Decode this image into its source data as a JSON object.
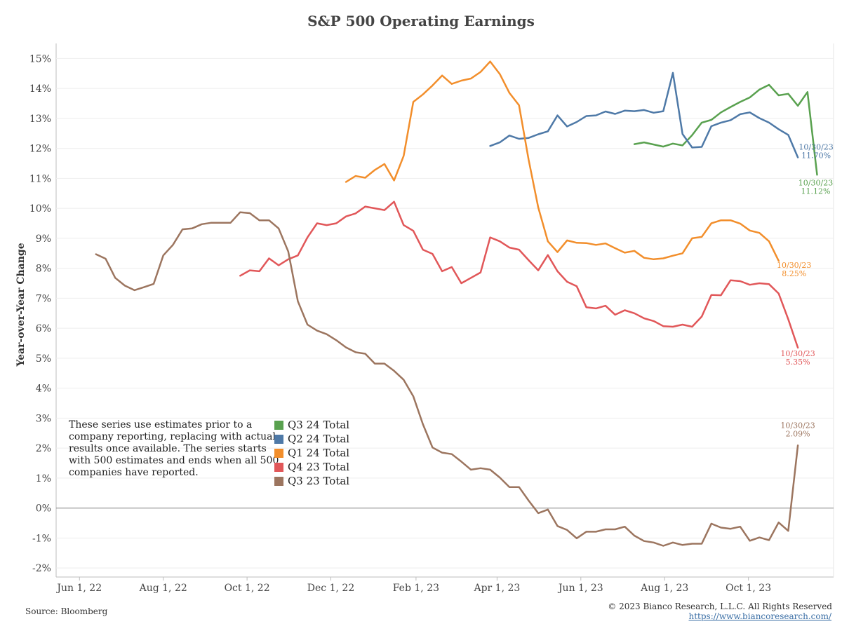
{
  "title": "S&P 500 Operating Earnings",
  "note": "These series use estimates prior to a company reporting, replacing with actual results once available. The series starts with 500 estimates and ends when all 500 companies have reported.",
  "source": "Source: Bloomberg",
  "copyright": "© 2023 Bianco Research, L.L.C. All Rights Reserved",
  "link": "https://www.biancoresearch.com/",
  "chart_data": {
    "type": "line",
    "title": "S&P 500 Operating Earnings",
    "xlabel": "",
    "ylabel": "Year-over-Year Change",
    "xlim": [
      "2022-05-15",
      "2023-12-02"
    ],
    "ylim": [
      -2.3,
      15.5
    ],
    "x_ticks": [
      {
        "date": "2022-06-01",
        "label": "Jun 1, 22"
      },
      {
        "date": "2022-08-01",
        "label": "Aug 1, 22"
      },
      {
        "date": "2022-10-01",
        "label": "Oct 1, 22"
      },
      {
        "date": "2022-12-01",
        "label": "Dec 1, 22"
      },
      {
        "date": "2023-02-01",
        "label": "Feb 1, 23"
      },
      {
        "date": "2023-04-01",
        "label": "Apr 1, 23"
      },
      {
        "date": "2023-06-01",
        "label": "Jun 1, 23"
      },
      {
        "date": "2023-08-01",
        "label": "Aug 1, 23"
      },
      {
        "date": "2023-10-01",
        "label": "Oct 1, 23"
      }
    ],
    "y_ticks": [
      {
        "value": 15,
        "label": "15%"
      },
      {
        "value": 14,
        "label": "14%"
      },
      {
        "value": 13,
        "label": "13%"
      },
      {
        "value": 12,
        "label": "12%"
      },
      {
        "value": 11,
        "label": "11%"
      },
      {
        "value": 10,
        "label": "10%"
      },
      {
        "value": 9,
        "label": "9%"
      },
      {
        "value": 8,
        "label": "8%"
      },
      {
        "value": 7,
        "label": "7%"
      },
      {
        "value": 6,
        "label": "6%"
      },
      {
        "value": 5,
        "label": "5%"
      },
      {
        "value": 4,
        "label": "4%"
      },
      {
        "value": 3,
        "label": "3%"
      },
      {
        "value": 2,
        "label": "2%"
      },
      {
        "value": 1,
        "label": "1%"
      },
      {
        "value": 0,
        "label": "0%"
      },
      {
        "value": -1,
        "label": "-1%"
      },
      {
        "value": -2,
        "label": "-2%"
      }
    ],
    "grid": true,
    "legend": "bottom-left",
    "series": [
      {
        "name": "Q3 24 Total",
        "color": "#59a14f",
        "end_label": [
          "10/30/23",
          "11.12%"
        ],
        "points": [
          [
            "2023-07-10",
            12.14
          ],
          [
            "2023-07-17",
            12.2
          ],
          [
            "2023-07-24",
            12.13
          ],
          [
            "2023-07-31",
            12.06
          ],
          [
            "2023-08-07",
            12.16
          ],
          [
            "2023-08-14",
            12.1
          ],
          [
            "2023-08-21",
            12.44
          ],
          [
            "2023-08-28",
            12.86
          ],
          [
            "2023-09-04",
            12.95
          ],
          [
            "2023-09-11",
            13.2
          ],
          [
            "2023-09-18",
            13.38
          ],
          [
            "2023-09-25",
            13.55
          ],
          [
            "2023-10-02",
            13.7
          ],
          [
            "2023-10-09",
            13.96
          ],
          [
            "2023-10-16",
            14.12
          ],
          [
            "2023-10-23",
            13.77
          ],
          [
            "2023-10-30",
            13.82
          ],
          [
            "2023-11-06",
            13.42
          ],
          [
            "2023-11-13",
            13.88
          ],
          [
            "2023-11-20",
            11.12
          ]
        ]
      },
      {
        "name": "Q2 24 Total",
        "color": "#4e79a7",
        "end_label": [
          "10/30/23",
          "11.70%"
        ],
        "points": [
          [
            "2023-03-27",
            12.08
          ],
          [
            "2023-04-03",
            12.2
          ],
          [
            "2023-04-10",
            12.43
          ],
          [
            "2023-04-17",
            12.32
          ],
          [
            "2023-04-24",
            12.35
          ],
          [
            "2023-05-01",
            12.47
          ],
          [
            "2023-05-08",
            12.57
          ],
          [
            "2023-05-15",
            13.1
          ],
          [
            "2023-05-22",
            12.73
          ],
          [
            "2023-05-29",
            12.88
          ],
          [
            "2023-06-05",
            13.08
          ],
          [
            "2023-06-12",
            13.1
          ],
          [
            "2023-06-19",
            13.23
          ],
          [
            "2023-06-26",
            13.15
          ],
          [
            "2023-07-03",
            13.26
          ],
          [
            "2023-07-10",
            13.24
          ],
          [
            "2023-07-17",
            13.28
          ],
          [
            "2023-07-24",
            13.19
          ],
          [
            "2023-07-31",
            13.24
          ],
          [
            "2023-08-07",
            14.52
          ],
          [
            "2023-08-14",
            12.48
          ],
          [
            "2023-08-21",
            12.03
          ],
          [
            "2023-08-28",
            12.05
          ],
          [
            "2023-09-04",
            12.74
          ],
          [
            "2023-09-11",
            12.86
          ],
          [
            "2023-09-18",
            12.94
          ],
          [
            "2023-09-25",
            13.14
          ],
          [
            "2023-10-02",
            13.2
          ],
          [
            "2023-10-09",
            13.01
          ],
          [
            "2023-10-16",
            12.86
          ],
          [
            "2023-10-23",
            12.64
          ],
          [
            "2023-10-30",
            12.45
          ],
          [
            "2023-11-06",
            11.7
          ]
        ]
      },
      {
        "name": "Q1 24 Total",
        "color": "#f28e2b",
        "end_label": [
          "10/30/23",
          "8.25%"
        ],
        "points": [
          [
            "2022-12-12",
            10.88
          ],
          [
            "2022-12-19",
            11.08
          ],
          [
            "2022-12-26",
            11.02
          ],
          [
            "2023-01-02",
            11.28
          ],
          [
            "2023-01-09",
            11.48
          ],
          [
            "2023-01-16",
            10.93
          ],
          [
            "2023-01-23",
            11.75
          ],
          [
            "2023-01-30",
            13.55
          ],
          [
            "2023-02-06",
            13.8
          ],
          [
            "2023-02-13",
            14.1
          ],
          [
            "2023-02-20",
            14.43
          ],
          [
            "2023-02-27",
            14.15
          ],
          [
            "2023-03-06",
            14.26
          ],
          [
            "2023-03-13",
            14.33
          ],
          [
            "2023-03-20",
            14.55
          ],
          [
            "2023-03-27",
            14.9
          ],
          [
            "2023-04-03",
            14.48
          ],
          [
            "2023-04-10",
            13.85
          ],
          [
            "2023-04-17",
            13.44
          ],
          [
            "2023-04-24",
            11.62
          ],
          [
            "2023-05-01",
            10.03
          ],
          [
            "2023-05-08",
            8.9
          ],
          [
            "2023-05-15",
            8.54
          ],
          [
            "2023-05-22",
            8.93
          ],
          [
            "2023-05-29",
            8.85
          ],
          [
            "2023-06-05",
            8.84
          ],
          [
            "2023-06-12",
            8.78
          ],
          [
            "2023-06-19",
            8.83
          ],
          [
            "2023-06-26",
            8.67
          ],
          [
            "2023-07-03",
            8.52
          ],
          [
            "2023-07-10",
            8.58
          ],
          [
            "2023-07-17",
            8.35
          ],
          [
            "2023-07-24",
            8.3
          ],
          [
            "2023-07-31",
            8.33
          ],
          [
            "2023-08-07",
            8.42
          ],
          [
            "2023-08-14",
            8.5
          ],
          [
            "2023-08-21",
            9.0
          ],
          [
            "2023-08-28",
            9.05
          ],
          [
            "2023-09-04",
            9.5
          ],
          [
            "2023-09-11",
            9.6
          ],
          [
            "2023-09-18",
            9.6
          ],
          [
            "2023-09-25",
            9.49
          ],
          [
            "2023-10-02",
            9.26
          ],
          [
            "2023-10-09",
            9.18
          ],
          [
            "2023-10-16",
            8.9
          ],
          [
            "2023-10-23",
            8.25
          ]
        ]
      },
      {
        "name": "Q4 23 Total",
        "color": "#e15759",
        "end_label": [
          "10/30/23",
          "5.35%"
        ],
        "points": [
          [
            "2022-09-26",
            7.75
          ],
          [
            "2022-10-03",
            7.93
          ],
          [
            "2022-10-10",
            7.9
          ],
          [
            "2022-10-17",
            8.33
          ],
          [
            "2022-10-24",
            8.1
          ],
          [
            "2022-10-31",
            8.3
          ],
          [
            "2022-11-07",
            8.43
          ],
          [
            "2022-11-14",
            9.03
          ],
          [
            "2022-11-21",
            9.5
          ],
          [
            "2022-11-28",
            9.44
          ],
          [
            "2022-12-05",
            9.5
          ],
          [
            "2022-12-12",
            9.73
          ],
          [
            "2022-12-19",
            9.83
          ],
          [
            "2022-12-26",
            10.06
          ],
          [
            "2023-01-02",
            10.0
          ],
          [
            "2023-01-09",
            9.94
          ],
          [
            "2023-01-16",
            10.22
          ],
          [
            "2023-01-23",
            9.44
          ],
          [
            "2023-01-30",
            9.25
          ],
          [
            "2023-02-06",
            8.62
          ],
          [
            "2023-02-13",
            8.48
          ],
          [
            "2023-02-20",
            7.9
          ],
          [
            "2023-02-27",
            8.04
          ],
          [
            "2023-03-06",
            7.5
          ],
          [
            "2023-03-13",
            7.68
          ],
          [
            "2023-03-20",
            7.86
          ],
          [
            "2023-03-27",
            9.03
          ],
          [
            "2023-04-03",
            8.9
          ],
          [
            "2023-04-10",
            8.69
          ],
          [
            "2023-04-17",
            8.62
          ],
          [
            "2023-04-24",
            8.27
          ],
          [
            "2023-05-01",
            7.93
          ],
          [
            "2023-05-08",
            8.44
          ],
          [
            "2023-05-15",
            7.9
          ],
          [
            "2023-05-22",
            7.55
          ],
          [
            "2023-05-29",
            7.4
          ],
          [
            "2023-06-05",
            6.7
          ],
          [
            "2023-06-12",
            6.66
          ],
          [
            "2023-06-19",
            6.75
          ],
          [
            "2023-06-26",
            6.45
          ],
          [
            "2023-07-03",
            6.6
          ],
          [
            "2023-07-10",
            6.5
          ],
          [
            "2023-07-17",
            6.33
          ],
          [
            "2023-07-24",
            6.24
          ],
          [
            "2023-07-31",
            6.07
          ],
          [
            "2023-08-07",
            6.05
          ],
          [
            "2023-08-14",
            6.12
          ],
          [
            "2023-08-21",
            6.05
          ],
          [
            "2023-08-28",
            6.39
          ],
          [
            "2023-09-04",
            7.11
          ],
          [
            "2023-09-11",
            7.1
          ],
          [
            "2023-09-18",
            7.6
          ],
          [
            "2023-09-25",
            7.57
          ],
          [
            "2023-10-02",
            7.45
          ],
          [
            "2023-10-09",
            7.5
          ],
          [
            "2023-10-16",
            7.47
          ],
          [
            "2023-10-23",
            7.16
          ],
          [
            "2023-10-30",
            6.3
          ],
          [
            "2023-11-06",
            5.35
          ]
        ]
      },
      {
        "name": "Q3 23 Total",
        "color": "#9c755f",
        "end_label": [
          "10/30/23",
          "2.09%"
        ],
        "points": [
          [
            "2022-06-13",
            8.47
          ],
          [
            "2022-06-20",
            8.32
          ],
          [
            "2022-06-27",
            7.68
          ],
          [
            "2022-07-04",
            7.42
          ],
          [
            "2022-07-11",
            7.27
          ],
          [
            "2022-07-18",
            7.37
          ],
          [
            "2022-07-25",
            7.48
          ],
          [
            "2022-08-01",
            8.43
          ],
          [
            "2022-08-08",
            8.78
          ],
          [
            "2022-08-15",
            9.3
          ],
          [
            "2022-08-22",
            9.33
          ],
          [
            "2022-08-29",
            9.47
          ],
          [
            "2022-09-05",
            9.52
          ],
          [
            "2022-09-12",
            9.52
          ],
          [
            "2022-09-19",
            9.52
          ],
          [
            "2022-09-26",
            9.87
          ],
          [
            "2022-10-03",
            9.84
          ],
          [
            "2022-10-10",
            9.6
          ],
          [
            "2022-10-17",
            9.6
          ],
          [
            "2022-10-24",
            9.33
          ],
          [
            "2022-10-31",
            8.56
          ],
          [
            "2022-11-07",
            6.9
          ],
          [
            "2022-11-14",
            6.12
          ],
          [
            "2022-11-21",
            5.92
          ],
          [
            "2022-11-28",
            5.8
          ],
          [
            "2022-12-05",
            5.6
          ],
          [
            "2022-12-12",
            5.36
          ],
          [
            "2022-12-19",
            5.2
          ],
          [
            "2022-12-26",
            5.15
          ],
          [
            "2023-01-02",
            4.82
          ],
          [
            "2023-01-09",
            4.82
          ],
          [
            "2023-01-16",
            4.58
          ],
          [
            "2023-01-23",
            4.28
          ],
          [
            "2023-01-30",
            3.73
          ],
          [
            "2023-02-06",
            2.8
          ],
          [
            "2023-02-13",
            2.02
          ],
          [
            "2023-02-20",
            1.85
          ],
          [
            "2023-02-27",
            1.8
          ],
          [
            "2023-03-06",
            1.55
          ],
          [
            "2023-03-13",
            1.28
          ],
          [
            "2023-03-20",
            1.33
          ],
          [
            "2023-03-27",
            1.28
          ],
          [
            "2023-04-03",
            1.02
          ],
          [
            "2023-04-10",
            0.7
          ],
          [
            "2023-04-17",
            0.7
          ],
          [
            "2023-04-24",
            0.25
          ],
          [
            "2023-05-01",
            -0.17
          ],
          [
            "2023-05-08",
            -0.05
          ],
          [
            "2023-05-15",
            -0.6
          ],
          [
            "2023-05-22",
            -0.73
          ],
          [
            "2023-05-29",
            -1.01
          ],
          [
            "2023-06-05",
            -0.79
          ],
          [
            "2023-06-12",
            -0.79
          ],
          [
            "2023-06-19",
            -0.71
          ],
          [
            "2023-06-26",
            -0.71
          ],
          [
            "2023-07-03",
            -0.62
          ],
          [
            "2023-07-10",
            -0.92
          ],
          [
            "2023-07-17",
            -1.1
          ],
          [
            "2023-07-24",
            -1.15
          ],
          [
            "2023-07-31",
            -1.26
          ],
          [
            "2023-08-07",
            -1.15
          ],
          [
            "2023-08-14",
            -1.23
          ],
          [
            "2023-08-21",
            -1.19
          ],
          [
            "2023-08-28",
            -1.19
          ],
          [
            "2023-09-04",
            -0.52
          ],
          [
            "2023-09-11",
            -0.65
          ],
          [
            "2023-09-18",
            -0.69
          ],
          [
            "2023-09-25",
            -0.62
          ],
          [
            "2023-10-02",
            -1.09
          ],
          [
            "2023-10-09",
            -0.98
          ],
          [
            "2023-10-16",
            -1.07
          ],
          [
            "2023-10-23",
            -0.48
          ],
          [
            "2023-10-30",
            -0.76
          ],
          [
            "2023-11-06",
            2.09
          ]
        ]
      }
    ]
  }
}
